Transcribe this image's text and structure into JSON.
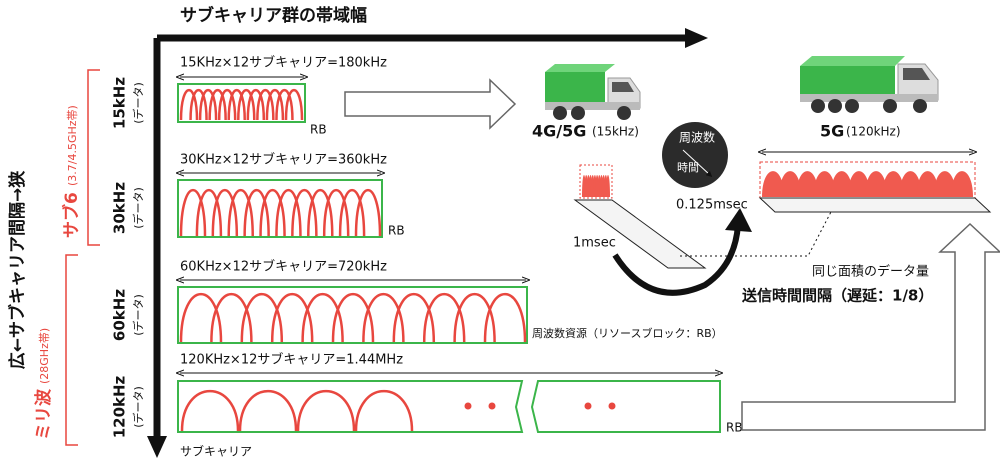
{
  "axis": {
    "title": "サブキャリア群の帯域幅",
    "y_label": "広←サブキャリア間隔→狭",
    "bottom_label": "サブキャリア"
  },
  "bands": [
    {
      "label": "サブ6",
      "range": "(3.7/4.5GHz帯)"
    },
    {
      "label": "ミリ波",
      "range": "(28GHz帯)"
    }
  ],
  "rows": [
    {
      "spacing": "15kHz",
      "sub": "(データ)",
      "formula": "15KHz×12サブキャリア=180kHz",
      "rb": "RB"
    },
    {
      "spacing": "30kHz",
      "sub": "(データ)",
      "formula": "30KHz×12サブキャリア=360kHz",
      "rb": "RB"
    },
    {
      "spacing": "60kHz",
      "sub": "(データ)",
      "formula": "60KHz×12サブキャリア=720kHz"
    },
    {
      "spacing": "120kHz",
      "sub": "(データ)",
      "formula": "120KHz×12サブキャリア=1.44MHz",
      "rb": "RB"
    }
  ],
  "rb_note": "周波数資源（リソースブロック：RB）",
  "trucks": [
    {
      "name": "4G/5G",
      "spacing": "(15kHz)"
    },
    {
      "name": "5G",
      "spacing": "(120kHz)"
    }
  ],
  "dial": {
    "top": "周波数",
    "bottom": "時間"
  },
  "durations": [
    "1msec",
    "0.125msec"
  ],
  "notes": [
    "同じ面積のデータ量",
    "送信時間間隔（遅延：1/8）"
  ]
}
